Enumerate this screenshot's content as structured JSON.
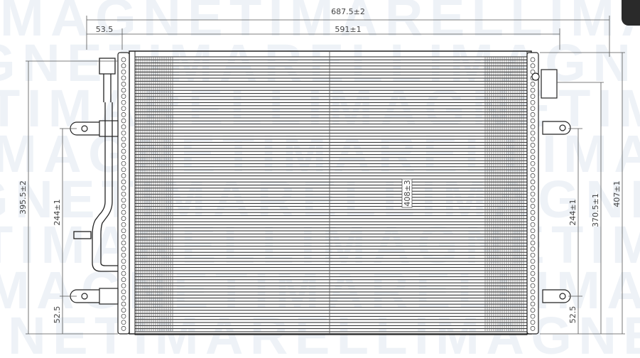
{
  "watermark": "MAGNETI MARELLI",
  "dimensions": {
    "overall_width": "687.5±2",
    "offset_left": "53.5",
    "core_width": "591±1",
    "left_height": "395.5±2",
    "left_bracket_spacing": "244±1",
    "left_bottom": "52.5",
    "core_height": "408±3",
    "right_bracket_spacing": "244±1",
    "right_inner_height": "370.5±1",
    "right_total_height": "407±1",
    "right_bottom": "52.5"
  },
  "colors": {
    "line": "#222222",
    "dim_line": "#555555",
    "watermark": "#eef2f7"
  }
}
